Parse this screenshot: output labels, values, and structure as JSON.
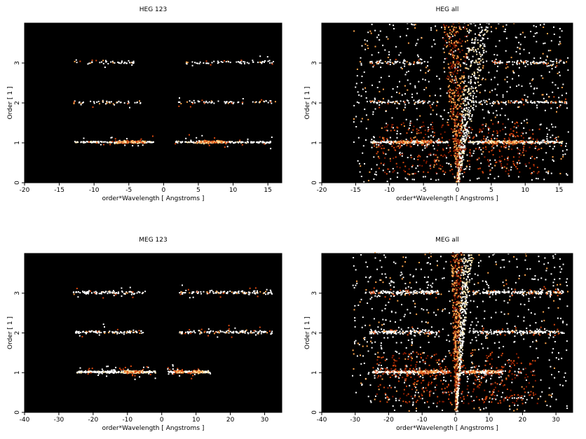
{
  "figure": {
    "background": "#ffffff",
    "plot_background": "#000000",
    "colormap": [
      "#3a0000",
      "#8b1a00",
      "#d9480f",
      "#ffa64d",
      "#ffe9b0",
      "#ffffff"
    ]
  },
  "chart_data": [
    {
      "type": "heatmap",
      "title": "HEG 123",
      "xlabel": "order*Wavelength [ Angstroms ]",
      "ylabel": "Order [ 1 ]",
      "xlim": [
        -20,
        17
      ],
      "ylim": [
        0,
        4
      ],
      "xticks": [
        -20,
        -15,
        -10,
        -5,
        0,
        5,
        10,
        15
      ],
      "yticks": [
        0,
        1,
        2,
        3
      ],
      "bands": [
        {
          "order": 1,
          "x_ranges": [
            [
              -13,
              -1.5
            ],
            [
              1.5,
              15.5
            ]
          ],
          "x_peaks": [
            -6,
            -4,
            6,
            8
          ],
          "strength": "bright"
        },
        {
          "order": 2,
          "x_ranges": [
            [
              -13,
              -3
            ],
            [
              2,
              16
            ]
          ],
          "strength": "faint"
        },
        {
          "order": 3,
          "x_ranges": [
            [
              -13,
              -4
            ],
            [
              3,
              16
            ]
          ],
          "strength": "faint"
        }
      ],
      "wedge": false
    },
    {
      "type": "heatmap",
      "title": "HEG all",
      "xlabel": "order*Wavelength [ Angstroms ]",
      "ylabel": "Order [ 1 ]",
      "xlim": [
        -20,
        17
      ],
      "ylim": [
        0,
        4
      ],
      "xticks": [
        -20,
        -15,
        -10,
        -5,
        0,
        5,
        10,
        15
      ],
      "yticks": [
        0,
        1,
        2,
        3
      ],
      "bands": [
        {
          "order": 1,
          "x_ranges": [
            [
              -13,
              -1.5
            ],
            [
              1.5,
              15.5
            ]
          ],
          "x_peaks": [
            -8,
            -5,
            5,
            8
          ],
          "strength": "bright"
        },
        {
          "order": 2,
          "x_ranges": [
            [
              -13,
              -3
            ],
            [
              2,
              16
            ]
          ],
          "strength": "faint"
        },
        {
          "order": 3,
          "x_ranges": [
            [
              -13,
              -4
            ],
            [
              3,
              16
            ]
          ],
          "strength": "faint"
        }
      ],
      "wedge": true,
      "wedge_slope": [
        -0.6,
        1.2
      ]
    },
    {
      "type": "heatmap",
      "title": "MEG 123",
      "xlabel": "order*Wavelength [ Angstroms ]",
      "ylabel": "Order [ 1 ]",
      "xlim": [
        -40,
        35
      ],
      "ylim": [
        0,
        4
      ],
      "xticks": [
        -40,
        -30,
        -20,
        -10,
        0,
        10,
        20,
        30
      ],
      "yticks": [
        0,
        1,
        2,
        3
      ],
      "bands": [
        {
          "order": 1,
          "x_ranges": [
            [
              -25,
              -2
            ],
            [
              1.5,
              14
            ]
          ],
          "x_peaks": [
            -10,
            -7,
            5,
            10
          ],
          "strength": "bright"
        },
        {
          "order": 2,
          "x_ranges": [
            [
              -26,
              -5
            ],
            [
              5,
              32
            ]
          ],
          "strength": "faint"
        },
        {
          "order": 3,
          "x_ranges": [
            [
              -26,
              -5
            ],
            [
              5,
              32
            ]
          ],
          "strength": "faint"
        }
      ],
      "wedge": false
    },
    {
      "type": "heatmap",
      "title": "MEG all",
      "xlabel": "order*Wavelength [ Angstroms ]",
      "ylabel": "Order [ 1 ]",
      "xlim": [
        -40,
        35
      ],
      "ylim": [
        0,
        4
      ],
      "xticks": [
        -40,
        -30,
        -20,
        -10,
        0,
        10,
        20,
        30
      ],
      "yticks": [
        0,
        1,
        2,
        3
      ],
      "bands": [
        {
          "order": 1,
          "x_ranges": [
            [
              -25,
              -2
            ],
            [
              1.5,
              14
            ]
          ],
          "x_peaks": [
            -10,
            -7,
            5,
            10
          ],
          "strength": "bright"
        },
        {
          "order": 2,
          "x_ranges": [
            [
              -26,
              -5
            ],
            [
              5,
              32
            ]
          ],
          "strength": "faint"
        },
        {
          "order": 3,
          "x_ranges": [
            [
              -26,
              -5
            ],
            [
              5,
              32
            ]
          ],
          "strength": "faint"
        }
      ],
      "wedge": true,
      "wedge_slope": [
        -0.4,
        1.2
      ]
    }
  ]
}
